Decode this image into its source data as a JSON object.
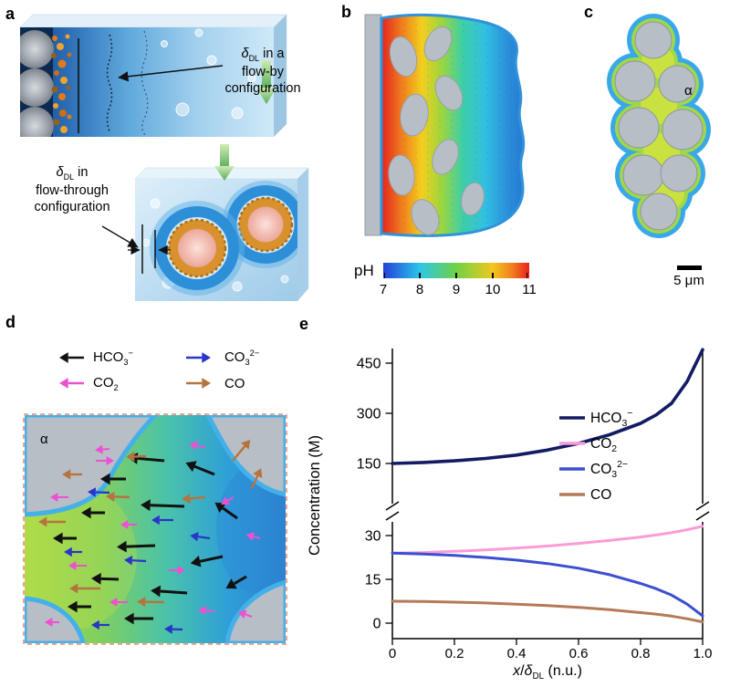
{
  "figure_type": "scientific-figure",
  "panel_a": {
    "label": "a",
    "flow_by": {
      "delta": "δ",
      "sub": "DL",
      "rest": " in a",
      "line2": "flow-by",
      "line3": "configuration"
    },
    "flow_through": {
      "delta": "δ",
      "sub": "DL",
      "rest": " in",
      "line2": "flow-through",
      "line3": "configuration"
    }
  },
  "panel_b": {
    "label": "b",
    "colorbar": {
      "label": "pH",
      "ticks": [
        "7",
        "8",
        "9",
        "10",
        "11"
      ]
    }
  },
  "panel_c": {
    "label": "c",
    "alpha": "α",
    "scalebar_label": "5 μm"
  },
  "panel_d": {
    "label": "d",
    "alpha": "α",
    "legend": [
      {
        "base": "HCO",
        "sub": "3",
        "sup": "−",
        "color": "#111111",
        "dir": "left"
      },
      {
        "base": "CO",
        "sub": "2",
        "sup": "",
        "color": "#ee50d2",
        "dir": "left"
      },
      {
        "base": "CO",
        "sub": "3",
        "sup": "2−",
        "color": "#2936c8",
        "dir": "right"
      },
      {
        "base": "CO",
        "sub": "",
        "sup": "",
        "color": "#b5743f",
        "dir": "right"
      }
    ],
    "arrow_colors": {
      "k": "#111111",
      "p": "#ee50d2",
      "b": "#2936c8",
      "n": "#b5743f"
    },
    "arrow_widths": {
      "k": 3,
      "p": 2,
      "b": 2.2,
      "n": 2.4
    },
    "arrows": [
      [
        160,
        55,
        40,
        185,
        "k"
      ],
      [
        118,
        75,
        28,
        180,
        "k"
      ],
      [
        215,
        70,
        34,
        202,
        "k"
      ],
      [
        182,
        105,
        48,
        182,
        "k"
      ],
      [
        95,
        112,
        26,
        180,
        "k"
      ],
      [
        240,
        118,
        30,
        215,
        "k"
      ],
      [
        64,
        140,
        26,
        180,
        "k"
      ],
      [
        150,
        148,
        42,
        178,
        "k"
      ],
      [
        224,
        160,
        36,
        168,
        "k"
      ],
      [
        110,
        185,
        30,
        182,
        "k"
      ],
      [
        185,
        200,
        40,
        184,
        "k"
      ],
      [
        250,
        182,
        26,
        150,
        "k"
      ],
      [
        80,
        215,
        26,
        180,
        "k"
      ],
      [
        148,
        228,
        32,
        180,
        "k"
      ],
      [
        85,
        55,
        20,
        0,
        "p"
      ],
      [
        205,
        40,
        18,
        190,
        "p"
      ],
      [
        55,
        95,
        20,
        180,
        "p"
      ],
      [
        130,
        125,
        18,
        180,
        "p"
      ],
      [
        236,
        95,
        16,
        150,
        "p"
      ],
      [
        75,
        170,
        20,
        180,
        "p"
      ],
      [
        165,
        175,
        18,
        0,
        "p"
      ],
      [
        120,
        210,
        20,
        180,
        "p"
      ],
      [
        215,
        220,
        18,
        185,
        "p"
      ],
      [
        45,
        232,
        16,
        180,
        "p"
      ],
      [
        256,
        226,
        16,
        200,
        "p"
      ],
      [
        265,
        140,
        16,
        195,
        "p"
      ],
      [
        100,
        42,
        16,
        175,
        "p"
      ],
      [
        100,
        90,
        24,
        182,
        "b"
      ],
      [
        170,
        120,
        24,
        180,
        "b"
      ],
      [
        70,
        155,
        20,
        180,
        "b"
      ],
      [
        140,
        165,
        24,
        183,
        "b"
      ],
      [
        210,
        140,
        22,
        188,
        "b"
      ],
      [
        100,
        235,
        20,
        180,
        "b"
      ],
      [
        180,
        240,
        20,
        182,
        "b"
      ],
      [
        52,
        122,
        30,
        180,
        "n"
      ],
      [
        122,
        95,
        26,
        182,
        "n"
      ],
      [
        90,
        195,
        34,
        180,
        "n"
      ],
      [
        160,
        210,
        30,
        181,
        "n"
      ],
      [
        235,
        55,
        30,
        -50,
        "n"
      ],
      [
        256,
        85,
        24,
        -65,
        "n"
      ],
      [
        205,
        95,
        26,
        175,
        "n"
      ],
      [
        140,
        50,
        22,
        178,
        "n"
      ],
      [
        70,
        70,
        22,
        180,
        "n"
      ]
    ]
  },
  "panel_e": {
    "label": "e",
    "ylabel": "Concentration (M)",
    "xlabel_parts": {
      "x": "x",
      "slash": "/",
      "delta": "δ",
      "sub": "DL",
      "units": " (n.u.)"
    },
    "legend": [
      {
        "base": "HCO",
        "sub": "3",
        "sup": "−",
        "color": "#131c63"
      },
      {
        "base": "CO",
        "sub": "2",
        "sup": "",
        "color": "#fb9bd7"
      },
      {
        "base": "CO",
        "sub": "3",
        "sup": "2−",
        "color": "#3b4fd0"
      },
      {
        "base": "CO",
        "sub": "",
        "sup": "",
        "color": "#b57a58"
      }
    ]
  },
  "chart_data": {
    "type": "line",
    "title": "",
    "xlabel": "x/δDL (n.u.)",
    "ylabel": "Concentration (M)",
    "xlim": [
      0,
      1.0
    ],
    "x_ticks": [
      "0",
      "0.2",
      "0.4",
      "0.6",
      "0.8",
      "1.0"
    ],
    "x_tick_values": [
      0,
      0.2,
      0.4,
      0.6,
      0.8,
      1.0
    ],
    "grid": false,
    "legend_position": "center-right",
    "y_axis_break": {
      "between": [
        35,
        150
      ]
    },
    "y_top_ticks": [
      150,
      300,
      450
    ],
    "y_bottom_ticks": [
      0,
      15,
      30
    ],
    "y_top_range": [
      150,
      495
    ],
    "y_bottom_range": [
      0,
      35
    ],
    "x": [
      0,
      0.1,
      0.2,
      0.3,
      0.4,
      0.5,
      0.6,
      0.7,
      0.8,
      0.85,
      0.9,
      0.95,
      1.0
    ],
    "series": [
      {
        "key": "hco3",
        "label": "HCO3−",
        "segment": "top",
        "color": "#131c63",
        "width": 3.6,
        "values": [
          150,
          153,
          158,
          165,
          175,
          190,
          210,
          236,
          270,
          295,
          330,
          395,
          490
        ]
      },
      {
        "key": "co2",
        "label": "CO2",
        "segment": "bottom",
        "color": "#fb9bd7",
        "width": 3,
        "values": [
          24,
          24.2,
          24.6,
          25.1,
          25.7,
          26.4,
          27.3,
          28.3,
          29.5,
          30.2,
          31,
          32,
          33.2
        ]
      },
      {
        "key": "co3",
        "label": "CO32−",
        "segment": "bottom",
        "color": "#3b4fd0",
        "width": 3,
        "values": [
          24,
          23.7,
          23.2,
          22.5,
          21.6,
          20.4,
          18.8,
          16.6,
          13.6,
          11.8,
          9.6,
          6.5,
          2.5
        ]
      },
      {
        "key": "co",
        "label": "CO",
        "segment": "bottom",
        "color": "#b57a58",
        "width": 3,
        "values": [
          7.5,
          7.4,
          7.2,
          6.9,
          6.5,
          6,
          5.4,
          4.6,
          3.6,
          3.1,
          2.4,
          1.5,
          0.4
        ]
      }
    ]
  }
}
